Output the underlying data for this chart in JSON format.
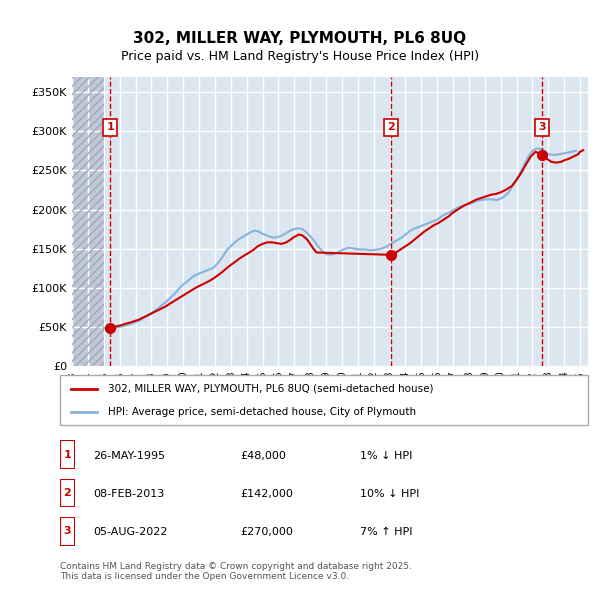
{
  "title_line1": "302, MILLER WAY, PLYMOUTH, PL6 8UQ",
  "title_line2": "Price paid vs. HM Land Registry's House Price Index (HPI)",
  "ylabel": "",
  "ylim": [
    0,
    370000
  ],
  "yticks": [
    0,
    50000,
    100000,
    150000,
    200000,
    250000,
    300000,
    350000
  ],
  "ytick_labels": [
    "£0",
    "£50K",
    "£100K",
    "£150K",
    "£200K",
    "£250K",
    "£300K",
    "£350K"
  ],
  "xlim_start": 1993.0,
  "xlim_end": 2025.5,
  "background_color": "#ffffff",
  "plot_bg_color": "#dce6f0",
  "hatch_color": "#c0c8d8",
  "grid_color": "#ffffff",
  "property_color": "#cc0000",
  "hpi_color": "#89b4d9",
  "sale_marker_color": "#cc0000",
  "sale_line_color": "#cc0000",
  "sale_box_color": "#cc0000",
  "sale_box_fill": "#ffffff",
  "legend_label_property": "302, MILLER WAY, PLYMOUTH, PL6 8UQ (semi-detached house)",
  "legend_label_hpi": "HPI: Average price, semi-detached house, City of Plymouth",
  "sales": [
    {
      "num": 1,
      "date": "26-MAY-1995",
      "price": 48000,
      "year": 1995.4,
      "pct": "1%",
      "dir": "↓"
    },
    {
      "num": 2,
      "date": "08-FEB-2013",
      "price": 142000,
      "year": 2013.1,
      "pct": "10%",
      "dir": "↓"
    },
    {
      "num": 3,
      "date": "05-AUG-2022",
      "price": 270000,
      "year": 2022.6,
      "pct": "7%",
      "dir": "↑"
    }
  ],
  "footer": "Contains HM Land Registry data © Crown copyright and database right 2025.\nThis data is licensed under the Open Government Licence v3.0.",
  "hpi_data_x": [
    1995.0,
    1995.25,
    1995.5,
    1995.75,
    1996.0,
    1996.25,
    1996.5,
    1996.75,
    1997.0,
    1997.25,
    1997.5,
    1997.75,
    1998.0,
    1998.25,
    1998.5,
    1998.75,
    1999.0,
    1999.25,
    1999.5,
    1999.75,
    2000.0,
    2000.25,
    2000.5,
    2000.75,
    2001.0,
    2001.25,
    2001.5,
    2001.75,
    2002.0,
    2002.25,
    2002.5,
    2002.75,
    2003.0,
    2003.25,
    2003.5,
    2003.75,
    2004.0,
    2004.25,
    2004.5,
    2004.75,
    2005.0,
    2005.25,
    2005.5,
    2005.75,
    2006.0,
    2006.25,
    2006.5,
    2006.75,
    2007.0,
    2007.25,
    2007.5,
    2007.75,
    2008.0,
    2008.25,
    2008.5,
    2008.75,
    2009.0,
    2009.25,
    2009.5,
    2009.75,
    2010.0,
    2010.25,
    2010.5,
    2010.75,
    2011.0,
    2011.25,
    2011.5,
    2011.75,
    2012.0,
    2012.25,
    2012.5,
    2012.75,
    2013.0,
    2013.25,
    2013.5,
    2013.75,
    2014.0,
    2014.25,
    2014.5,
    2014.75,
    2015.0,
    2015.25,
    2015.5,
    2015.75,
    2016.0,
    2016.25,
    2016.5,
    2016.75,
    2017.0,
    2017.25,
    2017.5,
    2017.75,
    2018.0,
    2018.25,
    2018.5,
    2018.75,
    2019.0,
    2019.25,
    2019.5,
    2019.75,
    2020.0,
    2020.25,
    2020.5,
    2020.75,
    2021.0,
    2021.25,
    2021.5,
    2021.75,
    2022.0,
    2022.25,
    2022.5,
    2022.75,
    2023.0,
    2023.25,
    2023.5,
    2023.75,
    2024.0,
    2024.25,
    2024.5,
    2024.75
  ],
  "hpi_data_y": [
    48500,
    47000,
    47500,
    48500,
    50000,
    51000,
    52500,
    54000,
    56000,
    58000,
    61000,
    64000,
    67000,
    71000,
    75000,
    79000,
    83000,
    88000,
    93000,
    99000,
    104000,
    108000,
    112000,
    116000,
    118000,
    120000,
    122000,
    124000,
    127000,
    133000,
    140000,
    148000,
    153000,
    158000,
    162000,
    165000,
    168000,
    171000,
    173000,
    172000,
    169000,
    167000,
    165000,
    164000,
    165000,
    167000,
    170000,
    173000,
    175000,
    176000,
    175000,
    171000,
    166000,
    160000,
    153000,
    147000,
    143000,
    142000,
    143000,
    145000,
    148000,
    150000,
    151000,
    150000,
    149000,
    149000,
    149000,
    148000,
    148000,
    149000,
    150000,
    152000,
    155000,
    158000,
    161000,
    164000,
    168000,
    172000,
    175000,
    177000,
    179000,
    181000,
    183000,
    185000,
    187000,
    191000,
    194000,
    196000,
    199000,
    202000,
    204000,
    206000,
    207000,
    209000,
    211000,
    212000,
    213000,
    213000,
    213000,
    212000,
    214000,
    217000,
    222000,
    230000,
    238000,
    248000,
    258000,
    268000,
    275000,
    278000,
    278000,
    275000,
    271000,
    270000,
    270000,
    271000,
    272000,
    273000,
    274000,
    275000
  ],
  "property_data_x": [
    1995.4,
    1995.5,
    1995.7,
    1995.9,
    1996.1,
    1996.4,
    1996.6,
    1996.9,
    1997.2,
    1997.5,
    1997.8,
    1998.1,
    1998.5,
    1998.9,
    1999.2,
    1999.6,
    2000.0,
    2000.4,
    2000.8,
    2001.2,
    2001.6,
    2002.0,
    2002.4,
    2002.8,
    2003.2,
    2003.6,
    2004.0,
    2004.4,
    2004.7,
    2005.0,
    2005.3,
    2005.6,
    2005.9,
    2006.2,
    2006.5,
    2006.8,
    2007.0,
    2007.3,
    2007.5,
    2007.8,
    2008.0,
    2008.2,
    2008.4,
    2013.1,
    2013.4,
    2013.7,
    2014.0,
    2014.3,
    2014.6,
    2014.9,
    2015.2,
    2015.5,
    2015.8,
    2016.1,
    2016.4,
    2016.7,
    2017.0,
    2017.3,
    2017.6,
    2017.9,
    2018.2,
    2018.5,
    2018.8,
    2019.1,
    2019.4,
    2019.7,
    2020.0,
    2020.3,
    2020.7,
    2021.0,
    2021.3,
    2021.6,
    2021.9,
    2022.2,
    2022.6,
    2022.9,
    2023.2,
    2023.5,
    2023.8,
    2024.0,
    2024.3,
    2024.6,
    2024.9,
    2025.0,
    2025.2
  ],
  "property_data_y": [
    48000,
    49000,
    50000,
    51000,
    52000,
    54000,
    55000,
    57000,
    59000,
    62000,
    65000,
    68000,
    72000,
    76000,
    80000,
    85000,
    90000,
    95000,
    100000,
    104000,
    108000,
    113000,
    119000,
    126000,
    132000,
    138000,
    143000,
    148000,
    153000,
    156000,
    158000,
    158000,
    157000,
    156000,
    158000,
    162000,
    165000,
    168000,
    167000,
    162000,
    156000,
    150000,
    145000,
    142000,
    145000,
    149000,
    153000,
    157000,
    162000,
    167000,
    172000,
    176000,
    180000,
    183000,
    187000,
    191000,
    196000,
    200000,
    204000,
    207000,
    210000,
    213000,
    215000,
    217000,
    219000,
    220000,
    222000,
    225000,
    230000,
    238000,
    247000,
    258000,
    268000,
    274000,
    270000,
    265000,
    261000,
    260000,
    261000,
    263000,
    265000,
    268000,
    271000,
    274000,
    276000
  ]
}
